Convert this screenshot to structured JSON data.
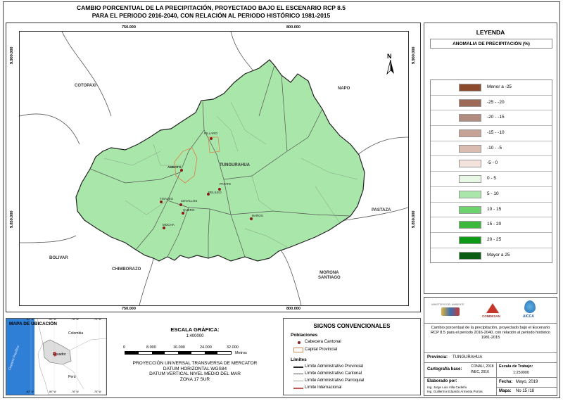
{
  "title": {
    "line1": "CAMBIO PORCENTUAL DE LA PRECIPITACIÓN, PROYECTADO BAJO EL ESCENARIO RCP 8.5",
    "line2": "PARA EL PERIODO 2016-2040, CON RELACIÓN AL PERIODO HISTÓRICO 1981-2015"
  },
  "map": {
    "coords_top": [
      "750.000",
      "800.000"
    ],
    "coords_bottom": [
      "750.000",
      "800.000"
    ],
    "coords_left": [
      "9.900.000",
      "9.850.000"
    ],
    "coords_right": [
      "9.900.000",
      "9.850.000"
    ],
    "north_label": "N",
    "regions": {
      "cotopaxi": "COTOPAXI",
      "napo": "NAPO",
      "tungurahua": "TUNGURAHUA",
      "pastaza": "PASTAZA",
      "bolivar": "BOLIVAR",
      "chimborazo": "CHIMBORAZO",
      "morona1": "MORONA",
      "morona2": "SANTIAGO"
    },
    "towns": {
      "pillaro": "PILLARO",
      "ambato": "AMBATO",
      "patate": "PATATE",
      "pelileo": "PELILEO",
      "tisaleo": "TISALEO",
      "cevallos": "CEVALLOS",
      "quero": "QUERO",
      "mocha": "MOCHA",
      "banos": "BAÑOS"
    },
    "fill_color": "#a9e6a9"
  },
  "legend": {
    "title": "LEYENDA",
    "subtitle": "ANOMALIA DE PRECIPITACIÓN (%)",
    "items": [
      {
        "label": "Menor a -25",
        "color": "#8b4a2b"
      },
      {
        "label": "-25 - -20",
        "color": "#9c6a56"
      },
      {
        "label": "-20 - -15",
        "color": "#b08b7e"
      },
      {
        "label": "-15 - -10",
        "color": "#c5a295"
      },
      {
        "label": "-10 - -5",
        "color": "#dbbcb0"
      },
      {
        "label": "-5 - 0",
        "color": "#f4e3dc"
      },
      {
        "label": "0 - 5",
        "color": "#e9f8e6"
      },
      {
        "label": "5 - 10",
        "color": "#a9e6a9"
      },
      {
        "label": "10 - 15",
        "color": "#6dd36d"
      },
      {
        "label": "15 - 20",
        "color": "#3cb83c"
      },
      {
        "label": "20 - 25",
        "color": "#0e9a17"
      },
      {
        "label": "Mayor a 25",
        "color": "#0b5d14"
      }
    ]
  },
  "info": {
    "logo_ministry": "MINISTERIO DEL AMBIENTE",
    "logo_condesan": "CONDESAN",
    "logo_aicca": "AICCA",
    "description": "Cambio porcentual de la precipitación, proyectado bajo el Escenario RCP 8.5 para el periodo 2016-2040, con relación al periodo histórico 1981-2015",
    "provincia_label": "Provincia:",
    "provincia_value": "TUNGURAHUA",
    "cartografia_label": "Cartografía base:",
    "cartografia_value1": "CONALI, 2018",
    "cartografia_value2": "INEC, 2016",
    "escala_label": "Escala de Trabajo:",
    "escala_value": "1:250000",
    "elaborado_label": "Elaborado por:",
    "elaborado_1": "Ing. Jorge Luis Villa Cedeño",
    "elaborado_2": "Ing. Guillermo Eduardo Armenta Porras",
    "fecha_label": "Fecha:",
    "fecha_value": "Mayo, 2019",
    "mapa_label": "Mapa:",
    "mapa_value": "No 15 /18"
  },
  "location_map": {
    "title": "MAPA DE UBICACIÓN",
    "top_coords": [
      "-82° W",
      "-80° W",
      "-78° W",
      "-76° W"
    ],
    "bottom_coords": [
      "-82° W",
      "-80° W",
      "-78° W",
      "-76° W"
    ],
    "countries": {
      "colombia": "Colombia",
      "ecuador": "Ecuador",
      "peru": "Perú"
    },
    "ocean": "Oceano Pacífico"
  },
  "scale": {
    "title": "ESCALA GRÁFICA:",
    "ratio": "1:400000",
    "ticks": [
      "0",
      "8.000",
      "16.000",
      "24.000",
      "32.000"
    ],
    "unit": "Metros",
    "projection1": "PROYECCIÓN UNIVERSAL TRANSVERSA DE MERCATOR",
    "projection2": "DATUM HORIZONTAL WGS84",
    "projection3": "DATUM VERTICAL NIVEL MEDIO DEL MAR",
    "projection4": "ZONA 17 SUR"
  },
  "conventional": {
    "title": "SIGNOS CONVENCIONALES",
    "poblaciones": "Poblaciones",
    "cabecera": "Cabecera Cantonal",
    "capital": "Capital Provincial",
    "limites": "Límites",
    "lim_provincial": "Límite Administrativo Provincial",
    "lim_cantonal": "Límite Administrativo Cantonal",
    "lim_parroquial": "Límite Administrativo Parroquial",
    "lim_internacional": "Límite Internacional"
  }
}
